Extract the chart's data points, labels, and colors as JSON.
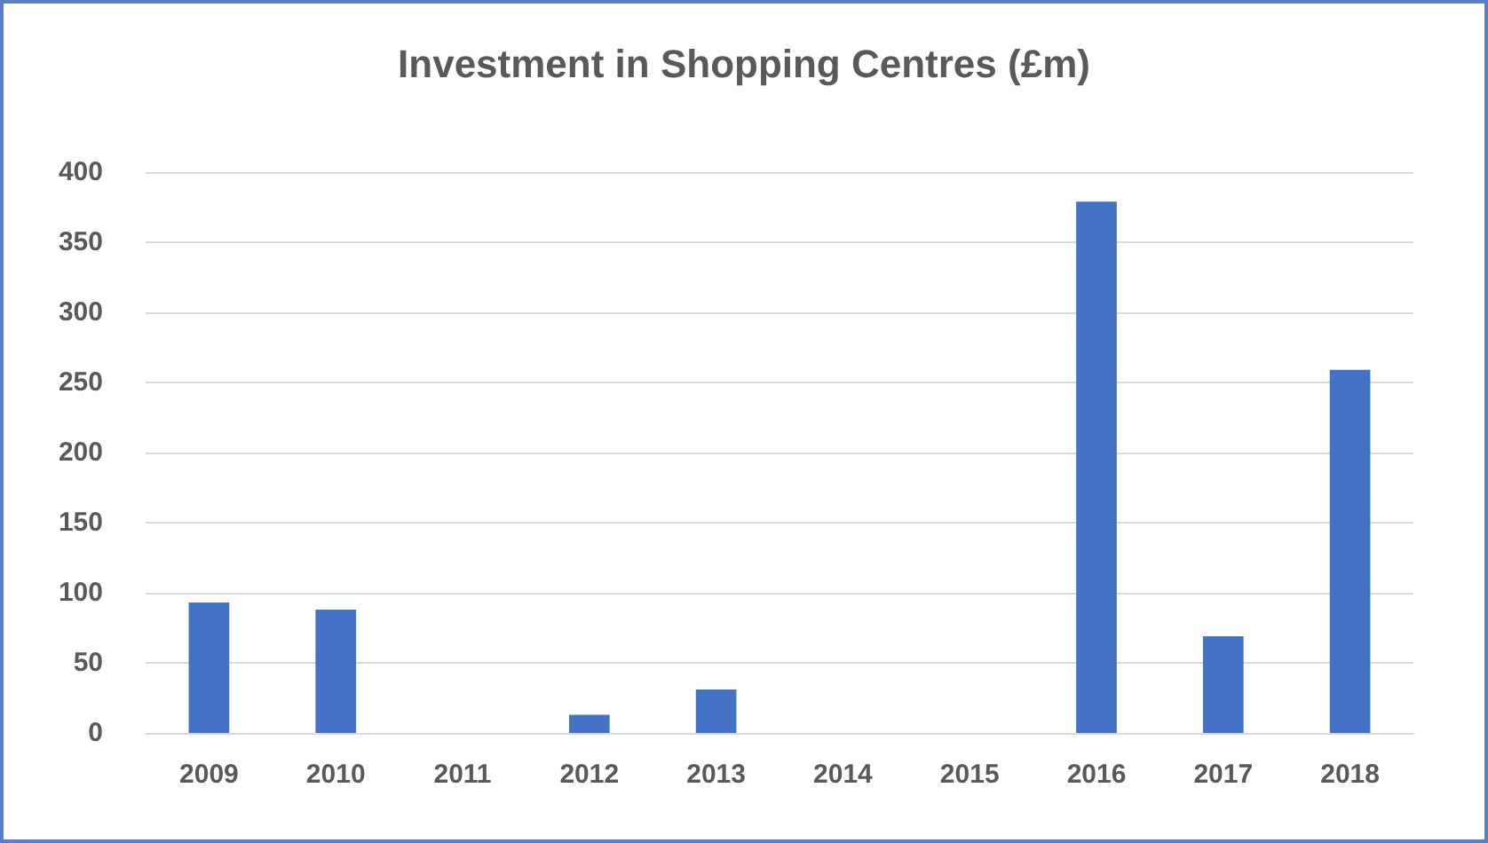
{
  "chart_data": {
    "type": "bar",
    "title": "Investment in Shopping Centres (£m)",
    "categories": [
      "2009",
      "2010",
      "2011",
      "2012",
      "2013",
      "2014",
      "2015",
      "2016",
      "2017",
      "2018"
    ],
    "values": [
      93,
      88,
      0,
      13,
      31,
      0,
      0,
      379,
      69,
      259
    ],
    "color": "#4472c4",
    "ylim": [
      0,
      400
    ],
    "yticks": [
      0,
      50,
      100,
      150,
      200,
      250,
      300,
      350,
      400
    ],
    "grid": "y"
  }
}
